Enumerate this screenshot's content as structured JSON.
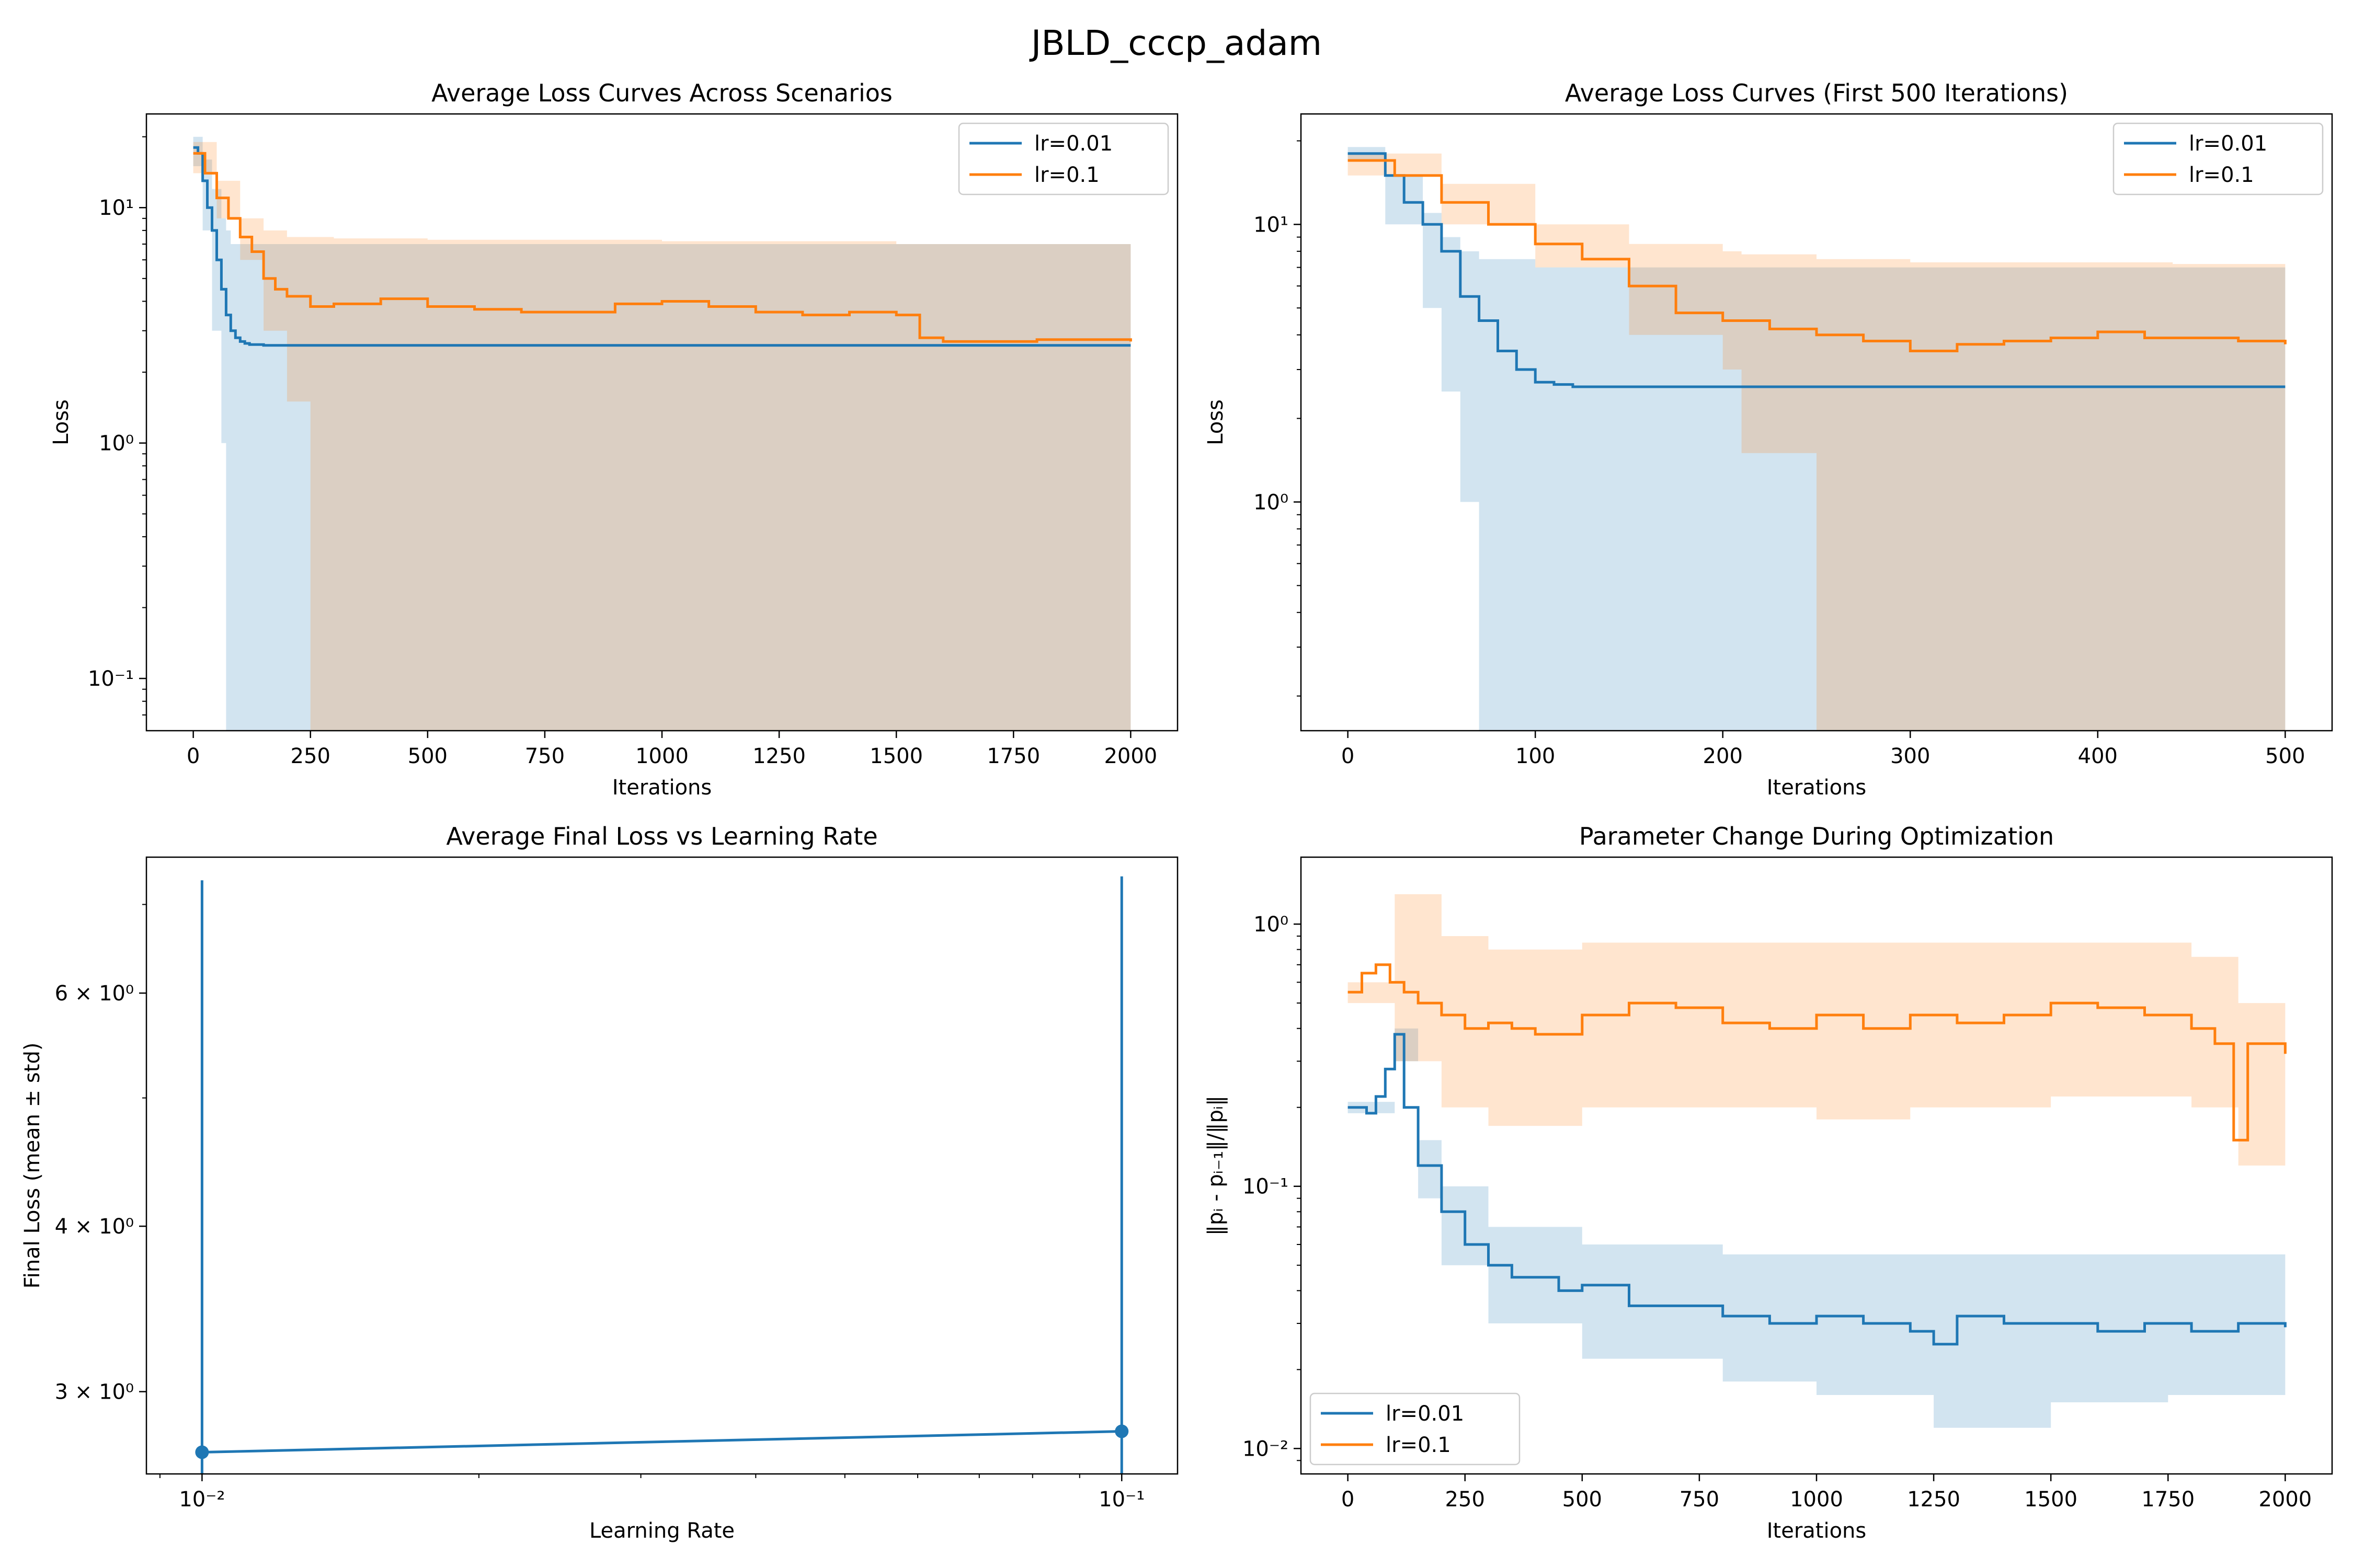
{
  "figure": {
    "suptitle": "JBLD_cccp_adam"
  },
  "colors": {
    "blue": "#1f77b4",
    "orange": "#ff7f0e",
    "blue_band": "#c6dbef",
    "orange_band": "#ffd8b5",
    "overlap_band": "#d9c9b8"
  },
  "chart_data": [
    {
      "id": "tl",
      "type": "line",
      "title": "Average Loss Curves Across Scenarios",
      "xlabel": "Iterations",
      "ylabel": "Loss",
      "yscale": "log",
      "xlim": [
        -100,
        2100
      ],
      "ylim": [
        0.06,
        25
      ],
      "xticks": [
        0,
        250,
        500,
        750,
        1000,
        1250,
        1500,
        1750,
        2000
      ],
      "xtick_labels": [
        "0",
        "250",
        "500",
        "750",
        "1000",
        "1250",
        "1500",
        "1750",
        "2000"
      ],
      "yticks": [
        0.1,
        1,
        10
      ],
      "ytick_labels": [
        "10⁻¹",
        "10⁰",
        "10¹"
      ],
      "legend": "upper right",
      "series": [
        {
          "name": "lr=0.01",
          "color_key": "blue",
          "x": [
            0,
            10,
            20,
            30,
            40,
            50,
            60,
            70,
            80,
            90,
            100,
            110,
            120,
            150,
            200,
            300,
            500,
            1000,
            1500,
            2000
          ],
          "y": [
            18,
            17,
            13,
            10,
            8,
            6,
            4.5,
            3.5,
            3,
            2.8,
            2.7,
            2.65,
            2.62,
            2.6,
            2.6,
            2.6,
            2.6,
            2.6,
            2.6,
            2.6
          ],
          "band_x": [
            0,
            20,
            40,
            60,
            70,
            80,
            150,
            200,
            250,
            300,
            380,
            420,
            450,
            500,
            560,
            600,
            1000,
            1500,
            2000
          ],
          "band_upper": [
            20,
            16,
            12,
            9,
            8,
            7,
            7,
            7,
            7,
            7,
            7,
            7,
            7,
            7,
            7,
            7,
            7,
            7,
            7
          ],
          "band_lower": [
            15,
            8,
            3,
            1,
            0.06,
            0.06,
            0.06,
            0.06,
            0.06,
            0.06,
            0.06,
            0.06,
            0.06,
            0.06,
            0.06,
            0.06,
            0.06,
            0.06,
            0.06
          ]
        },
        {
          "name": "lr=0.1",
          "color_key": "orange",
          "x": [
            0,
            25,
            50,
            75,
            100,
            125,
            150,
            175,
            200,
            250,
            300,
            400,
            500,
            600,
            700,
            750,
            800,
            900,
            1000,
            1100,
            1200,
            1300,
            1400,
            1500,
            1550,
            1600,
            1800,
            2000
          ],
          "y": [
            17,
            14,
            11,
            9,
            7.5,
            6.5,
            5,
            4.5,
            4.2,
            3.8,
            3.9,
            4.1,
            3.8,
            3.7,
            3.6,
            3.6,
            3.6,
            3.9,
            4.0,
            3.8,
            3.6,
            3.5,
            3.6,
            3.5,
            2.8,
            2.7,
            2.75,
            2.7
          ],
          "band_x": [
            0,
            50,
            100,
            150,
            200,
            250,
            300,
            500,
            1000,
            1500,
            2000
          ],
          "band_upper": [
            19,
            13,
            9,
            8,
            7.5,
            7.5,
            7.4,
            7.3,
            7.2,
            7.0,
            7.0
          ],
          "band_lower": [
            14,
            9,
            6,
            3,
            1.5,
            0.06,
            0.06,
            0.06,
            0.06,
            0.06,
            0.06
          ]
        }
      ]
    },
    {
      "id": "tr",
      "type": "line",
      "title": "Average Loss Curves (First 500 Iterations)",
      "xlabel": "Iterations",
      "ylabel": "Loss",
      "yscale": "log",
      "xlim": [
        -25,
        525
      ],
      "ylim": [
        0.15,
        25
      ],
      "xticks": [
        0,
        100,
        200,
        300,
        400,
        500
      ],
      "xtick_labels": [
        "0",
        "100",
        "200",
        "300",
        "400",
        "500"
      ],
      "yticks": [
        1,
        10
      ],
      "ytick_labels": [
        "10⁰",
        "10¹"
      ],
      "legend": "upper right",
      "series": [
        {
          "name": "lr=0.01",
          "color_key": "blue",
          "x": [
            0,
            10,
            20,
            30,
            40,
            50,
            60,
            70,
            80,
            90,
            100,
            110,
            120,
            200,
            300,
            400,
            500
          ],
          "y": [
            18,
            18,
            15,
            12,
            10,
            8,
            5.5,
            4.5,
            3.5,
            3,
            2.7,
            2.65,
            2.6,
            2.6,
            2.6,
            2.6,
            2.6
          ],
          "band_x": [
            0,
            20,
            40,
            50,
            60,
            70,
            100,
            200,
            300,
            400,
            500
          ],
          "band_upper": [
            19,
            15,
            11,
            9,
            8,
            7.5,
            7,
            7,
            7,
            7,
            7
          ],
          "band_lower": [
            17,
            10,
            5,
            2.5,
            1,
            0.15,
            0.15,
            0.15,
            0.15,
            0.15,
            0.15
          ]
        },
        {
          "name": "lr=0.1",
          "color_key": "orange",
          "x": [
            0,
            25,
            50,
            75,
            100,
            125,
            150,
            175,
            200,
            225,
            250,
            275,
            300,
            325,
            350,
            375,
            400,
            425,
            450,
            475,
            500
          ],
          "y": [
            17,
            15,
            12,
            10,
            8.5,
            7.5,
            6,
            4.8,
            4.5,
            4.2,
            4,
            3.8,
            3.5,
            3.7,
            3.8,
            3.9,
            4.1,
            3.9,
            3.9,
            3.8,
            3.7
          ],
          "band_x": [
            0,
            50,
            100,
            150,
            200,
            210,
            250,
            300,
            380,
            440,
            500
          ],
          "band_upper": [
            18,
            14,
            10,
            8.5,
            8,
            7.8,
            7.5,
            7.3,
            7.3,
            7.2,
            7.2
          ],
          "band_lower": [
            15,
            10,
            7,
            4,
            3,
            1.5,
            0.15,
            0.15,
            0.15,
            0.15,
            2
          ]
        }
      ]
    },
    {
      "id": "bl",
      "type": "scatter",
      "title": "Average Final Loss vs Learning Rate",
      "xlabel": "Learning Rate",
      "ylabel": "Final Loss (mean ± std)",
      "xscale": "log",
      "yscale": "log",
      "xlim": [
        0.0087,
        0.115
      ],
      "ylim": [
        2.6,
        7.6
      ],
      "xticks": [
        0.01,
        0.1
      ],
      "xtick_labels": [
        "10⁻²",
        "10⁻¹"
      ],
      "yticks": [
        3,
        4,
        6
      ],
      "ytick_labels": [
        "3 × 10⁰",
        "4 × 10⁰",
        "6 × 10⁰"
      ],
      "series": [
        {
          "name": "",
          "color_key": "blue",
          "x": [
            0.01,
            0.1
          ],
          "y": [
            2.7,
            2.8
          ],
          "yerr_upper": [
            7.3,
            7.35
          ]
        }
      ]
    },
    {
      "id": "br",
      "type": "line",
      "title": "Parameter Change During Optimization",
      "xlabel": "Iterations",
      "ylabel": "‖pᵢ - pᵢ₋₁‖/‖pᵢ‖",
      "yscale": "log",
      "xlim": [
        -100,
        2100
      ],
      "ylim": [
        0.008,
        1.8
      ],
      "xticks": [
        0,
        250,
        500,
        750,
        1000,
        1250,
        1500,
        1750,
        2000
      ],
      "xtick_labels": [
        "0",
        "250",
        "500",
        "750",
        "1000",
        "1250",
        "1500",
        "1750",
        "2000"
      ],
      "yticks": [
        0.01,
        0.1,
        1
      ],
      "ytick_labels": [
        "10⁻²",
        "10⁻¹",
        "10⁰"
      ],
      "legend": "lower left",
      "series": [
        {
          "name": "lr=0.01",
          "color_key": "blue",
          "x": [
            0,
            20,
            40,
            60,
            80,
            100,
            120,
            150,
            200,
            250,
            300,
            350,
            400,
            450,
            500,
            600,
            700,
            800,
            900,
            1000,
            1100,
            1200,
            1250,
            1300,
            1400,
            1500,
            1600,
            1700,
            1800,
            1900,
            2000
          ],
          "y": [
            0.2,
            0.2,
            0.19,
            0.22,
            0.28,
            0.38,
            0.2,
            0.12,
            0.08,
            0.06,
            0.05,
            0.045,
            0.045,
            0.04,
            0.042,
            0.035,
            0.035,
            0.032,
            0.03,
            0.032,
            0.03,
            0.028,
            0.025,
            0.032,
            0.03,
            0.03,
            0.028,
            0.03,
            0.028,
            0.03,
            0.029
          ],
          "band_x": [
            0,
            100,
            150,
            200,
            300,
            500,
            800,
            1000,
            1250,
            1500,
            1750,
            2000
          ],
          "band_upper": [
            0.21,
            0.4,
            0.15,
            0.1,
            0.07,
            0.06,
            0.055,
            0.055,
            0.055,
            0.055,
            0.055,
            0.055
          ],
          "band_lower": [
            0.19,
            0.3,
            0.09,
            0.05,
            0.03,
            0.022,
            0.018,
            0.016,
            0.012,
            0.015,
            0.016,
            0.018
          ]
        },
        {
          "name": "lr=0.1",
          "color_key": "orange",
          "x": [
            0,
            30,
            60,
            90,
            120,
            150,
            200,
            250,
            300,
            350,
            400,
            500,
            600,
            700,
            800,
            900,
            1000,
            1100,
            1200,
            1300,
            1400,
            1500,
            1600,
            1700,
            1800,
            1850,
            1890,
            1920,
            2000
          ],
          "y": [
            0.55,
            0.65,
            0.7,
            0.6,
            0.55,
            0.5,
            0.45,
            0.4,
            0.42,
            0.4,
            0.38,
            0.45,
            0.5,
            0.48,
            0.42,
            0.4,
            0.45,
            0.4,
            0.45,
            0.42,
            0.45,
            0.5,
            0.48,
            0.45,
            0.4,
            0.35,
            0.15,
            0.35,
            0.32
          ],
          "band_x": [
            0,
            100,
            200,
            300,
            500,
            800,
            1000,
            1200,
            1500,
            1800,
            1900,
            2000
          ],
          "band_upper": [
            0.6,
            1.3,
            0.9,
            0.8,
            0.85,
            0.85,
            0.85,
            0.85,
            0.85,
            0.75,
            0.5,
            0.5
          ],
          "band_lower": [
            0.5,
            0.3,
            0.2,
            0.17,
            0.2,
            0.2,
            0.18,
            0.2,
            0.22,
            0.2,
            0.12,
            0.18
          ]
        }
      ]
    }
  ]
}
